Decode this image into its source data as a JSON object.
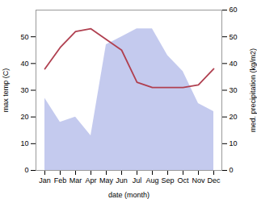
{
  "chart_data": {
    "type": "line",
    "categories": [
      "Jan",
      "Feb",
      "Mar",
      "Apr",
      "May",
      "Jun",
      "Jul",
      "Aug",
      "Sep",
      "Oct",
      "Nov",
      "Dec"
    ],
    "series": [
      {
        "type": "area",
        "color": "#b0b8e8",
        "axis": "y2",
        "values": [
          27,
          18,
          20,
          13,
          47,
          50,
          53,
          53,
          43,
          37,
          25,
          22
        ]
      },
      {
        "type": "line",
        "color": "#b04050",
        "values": [
          38,
          46,
          52,
          53,
          49,
          45,
          33,
          31,
          31,
          31,
          32,
          38
        ]
      }
    ],
    "xlabel": "date (month)",
    "ylabel": "max temp (C)",
    "y2label": "med. precipitation (kg/m2)",
    "ylim": [
      0,
      60
    ],
    "yticks": [
      0,
      10,
      20,
      30,
      40,
      50
    ],
    "y2lim": [
      0,
      60
    ],
    "y2ticks": [
      0,
      10,
      20,
      30,
      40,
      50,
      60
    ],
    "grid": false
  }
}
